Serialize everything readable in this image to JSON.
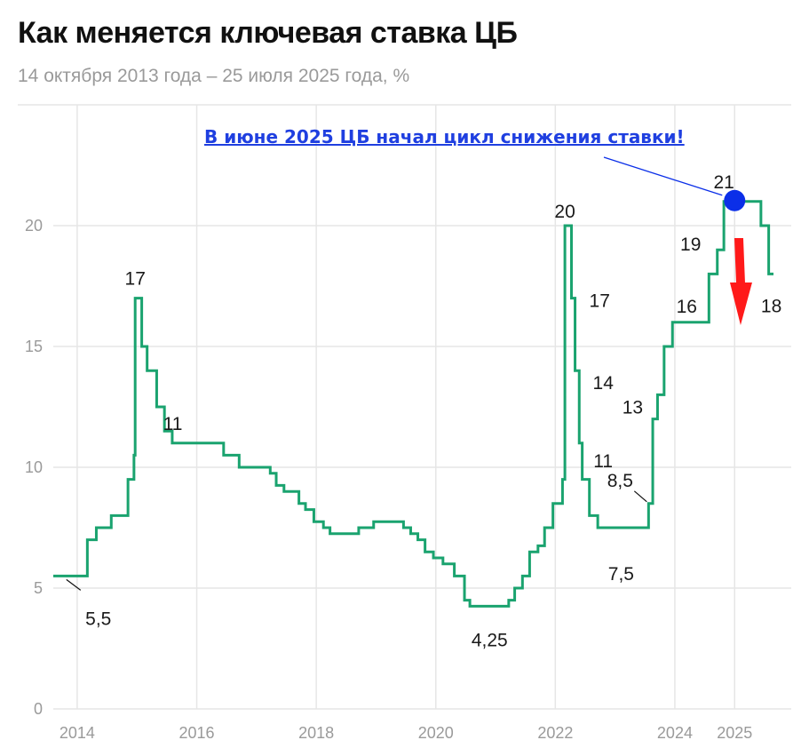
{
  "title": "Как меняется ключевая ставка ЦБ",
  "subtitle": "14 октября 2013 года – 25 июля 2025 года, %",
  "colors": {
    "line": "#1aa36f",
    "grid": "#e6e6e6",
    "tick": "#9a9a9a",
    "marker": "#0b2fe8",
    "arrow": "#ff1a1a",
    "note": "#1f3fe0"
  },
  "annotation": "В июне 2025 ЦБ начал цикл снижения ставки!",
  "chart_data": {
    "type": "line",
    "title": "Как меняется ключевая ставка ЦБ",
    "subtitle": "14 октября 2013 года – 25 июля 2025 года, %",
    "xlabel": "",
    "ylabel": "",
    "ylim": [
      0,
      25
    ],
    "xlim": [
      2013.6,
      2025.65
    ],
    "grid": true,
    "step": true,
    "x_ticks": [
      "2014",
      "2016",
      "2018",
      "2020",
      "2022",
      "2024",
      "2025"
    ],
    "y_ticks": [
      "0",
      "5",
      "10",
      "15",
      "20"
    ],
    "series": [
      {
        "points": [
          [
            2013.79,
            5.5
          ],
          [
            2014.17,
            7.0
          ],
          [
            2014.32,
            7.5
          ],
          [
            2014.57,
            8.0
          ],
          [
            2014.85,
            9.5
          ],
          [
            2014.95,
            10.5
          ],
          [
            2014.97,
            17.0
          ],
          [
            2015.08,
            15.0
          ],
          [
            2015.17,
            14.0
          ],
          [
            2015.33,
            12.5
          ],
          [
            2015.46,
            11.5
          ],
          [
            2015.59,
            11.0
          ],
          [
            2016.45,
            10.5
          ],
          [
            2016.71,
            10.0
          ],
          [
            2017.23,
            9.75
          ],
          [
            2017.33,
            9.25
          ],
          [
            2017.46,
            9.0
          ],
          [
            2017.71,
            8.5
          ],
          [
            2017.82,
            8.25
          ],
          [
            2017.96,
            7.75
          ],
          [
            2018.12,
            7.5
          ],
          [
            2018.23,
            7.25
          ],
          [
            2018.71,
            7.5
          ],
          [
            2018.96,
            7.75
          ],
          [
            2019.46,
            7.5
          ],
          [
            2019.58,
            7.25
          ],
          [
            2019.7,
            7.0
          ],
          [
            2019.82,
            6.5
          ],
          [
            2019.96,
            6.25
          ],
          [
            2020.12,
            6.0
          ],
          [
            2020.31,
            5.5
          ],
          [
            2020.48,
            4.5
          ],
          [
            2020.57,
            4.25
          ],
          [
            2021.22,
            4.5
          ],
          [
            2021.32,
            5.0
          ],
          [
            2021.45,
            5.5
          ],
          [
            2021.57,
            6.5
          ],
          [
            2021.71,
            6.75
          ],
          [
            2021.82,
            7.5
          ],
          [
            2021.96,
            8.5
          ],
          [
            2022.12,
            9.5
          ],
          [
            2022.16,
            20.0
          ],
          [
            2022.27,
            17.0
          ],
          [
            2022.33,
            14.0
          ],
          [
            2022.4,
            11.0
          ],
          [
            2022.45,
            9.5
          ],
          [
            2022.57,
            8.0
          ],
          [
            2022.71,
            7.5
          ],
          [
            2023.56,
            8.5
          ],
          [
            2023.63,
            12.0
          ],
          [
            2023.71,
            13.0
          ],
          [
            2023.82,
            15.0
          ],
          [
            2023.96,
            16.0
          ],
          [
            2024.57,
            18.0
          ],
          [
            2024.71,
            19.0
          ],
          [
            2024.82,
            21.0
          ],
          [
            2025.44,
            20.0
          ],
          [
            2025.57,
            18.0
          ],
          [
            2025.57,
            18.0
          ]
        ]
      }
    ],
    "data_labels": [
      {
        "text": "5,5",
        "x": 2013.79,
        "y": 5.5
      },
      {
        "text": "17",
        "x": 2014.97,
        "y": 17
      },
      {
        "text": "11",
        "x": 2015.6,
        "y": 11
      },
      {
        "text": "4,25",
        "x": 2020.9,
        "y": 4.25
      },
      {
        "text": "20",
        "x": 2022.16,
        "y": 20
      },
      {
        "text": "17",
        "x": 2022.27,
        "y": 17
      },
      {
        "text": "14",
        "x": 2022.33,
        "y": 14
      },
      {
        "text": "11",
        "x": 2022.4,
        "y": 11
      },
      {
        "text": "7,5",
        "x": 2023.1,
        "y": 7.5
      },
      {
        "text": "8,5",
        "x": 2023.56,
        "y": 8.5
      },
      {
        "text": "13",
        "x": 2023.71,
        "y": 13
      },
      {
        "text": "16",
        "x": 2023.96,
        "y": 16
      },
      {
        "text": "19",
        "x": 2024.71,
        "y": 19
      },
      {
        "text": "21",
        "x": 2024.82,
        "y": 21
      },
      {
        "text": "18",
        "x": 2025.57,
        "y": 18
      }
    ]
  }
}
